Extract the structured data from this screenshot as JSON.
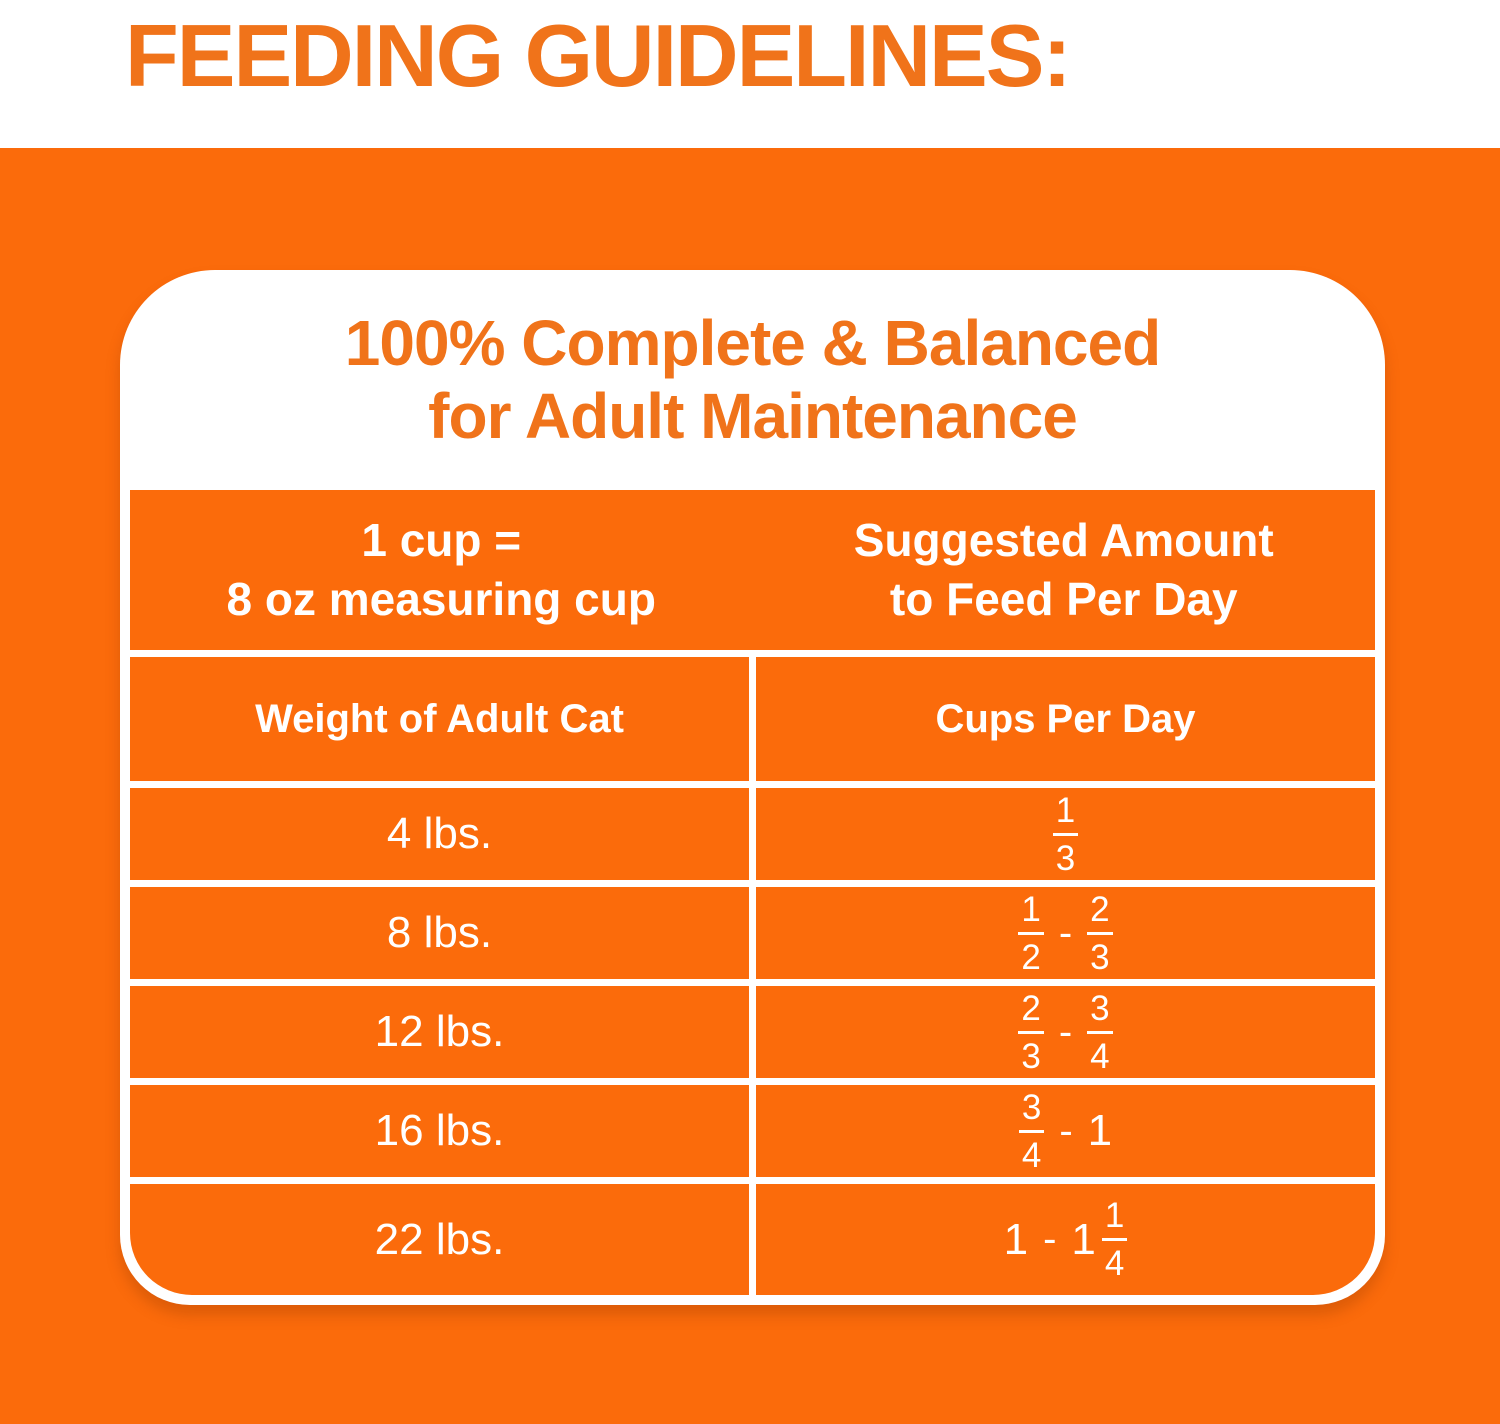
{
  "colors": {
    "background_orange": "#FB6B0B",
    "accent_text_orange": "#F0731A",
    "table_text_white": "#FFFFFF"
  },
  "title": "FEEDING GUIDELINES:",
  "panel": {
    "heading": {
      "line1": "100% Complete & Balanced",
      "line2": "for Adult Maintenance"
    },
    "table": {
      "header": {
        "left": {
          "line1": "1 cup =",
          "line2": "8 oz measuring cup"
        },
        "right": {
          "line1": "Suggested Amount",
          "line2": "to Feed Per Day"
        }
      },
      "columns": {
        "left": "Weight of Adult Cat",
        "right": "Cups Per Day"
      },
      "rows": [
        {
          "weight": "4 lbs.",
          "cups": [
            {
              "type": "fraction",
              "numerator": "1",
              "denominator": "3"
            }
          ]
        },
        {
          "weight": "8 lbs.",
          "cups": [
            {
              "type": "fraction",
              "numerator": "1",
              "denominator": "2"
            },
            {
              "type": "dash",
              "value": "-"
            },
            {
              "type": "fraction",
              "numerator": "2",
              "denominator": "3"
            }
          ]
        },
        {
          "weight": "12 lbs.",
          "cups": [
            {
              "type": "fraction",
              "numerator": "2",
              "denominator": "3"
            },
            {
              "type": "dash",
              "value": "-"
            },
            {
              "type": "fraction",
              "numerator": "3",
              "denominator": "4"
            }
          ]
        },
        {
          "weight": "16 lbs.",
          "cups": [
            {
              "type": "fraction",
              "numerator": "3",
              "denominator": "4"
            },
            {
              "type": "dash",
              "value": "-"
            },
            {
              "type": "number",
              "value": "1"
            }
          ]
        },
        {
          "weight": "22 lbs.",
          "cups": [
            {
              "type": "number",
              "value": "1"
            },
            {
              "type": "dash",
              "value": "-"
            },
            {
              "type": "number",
              "value": "1"
            },
            {
              "type": "fraction",
              "numerator": "1",
              "denominator": "4"
            }
          ]
        }
      ]
    }
  }
}
